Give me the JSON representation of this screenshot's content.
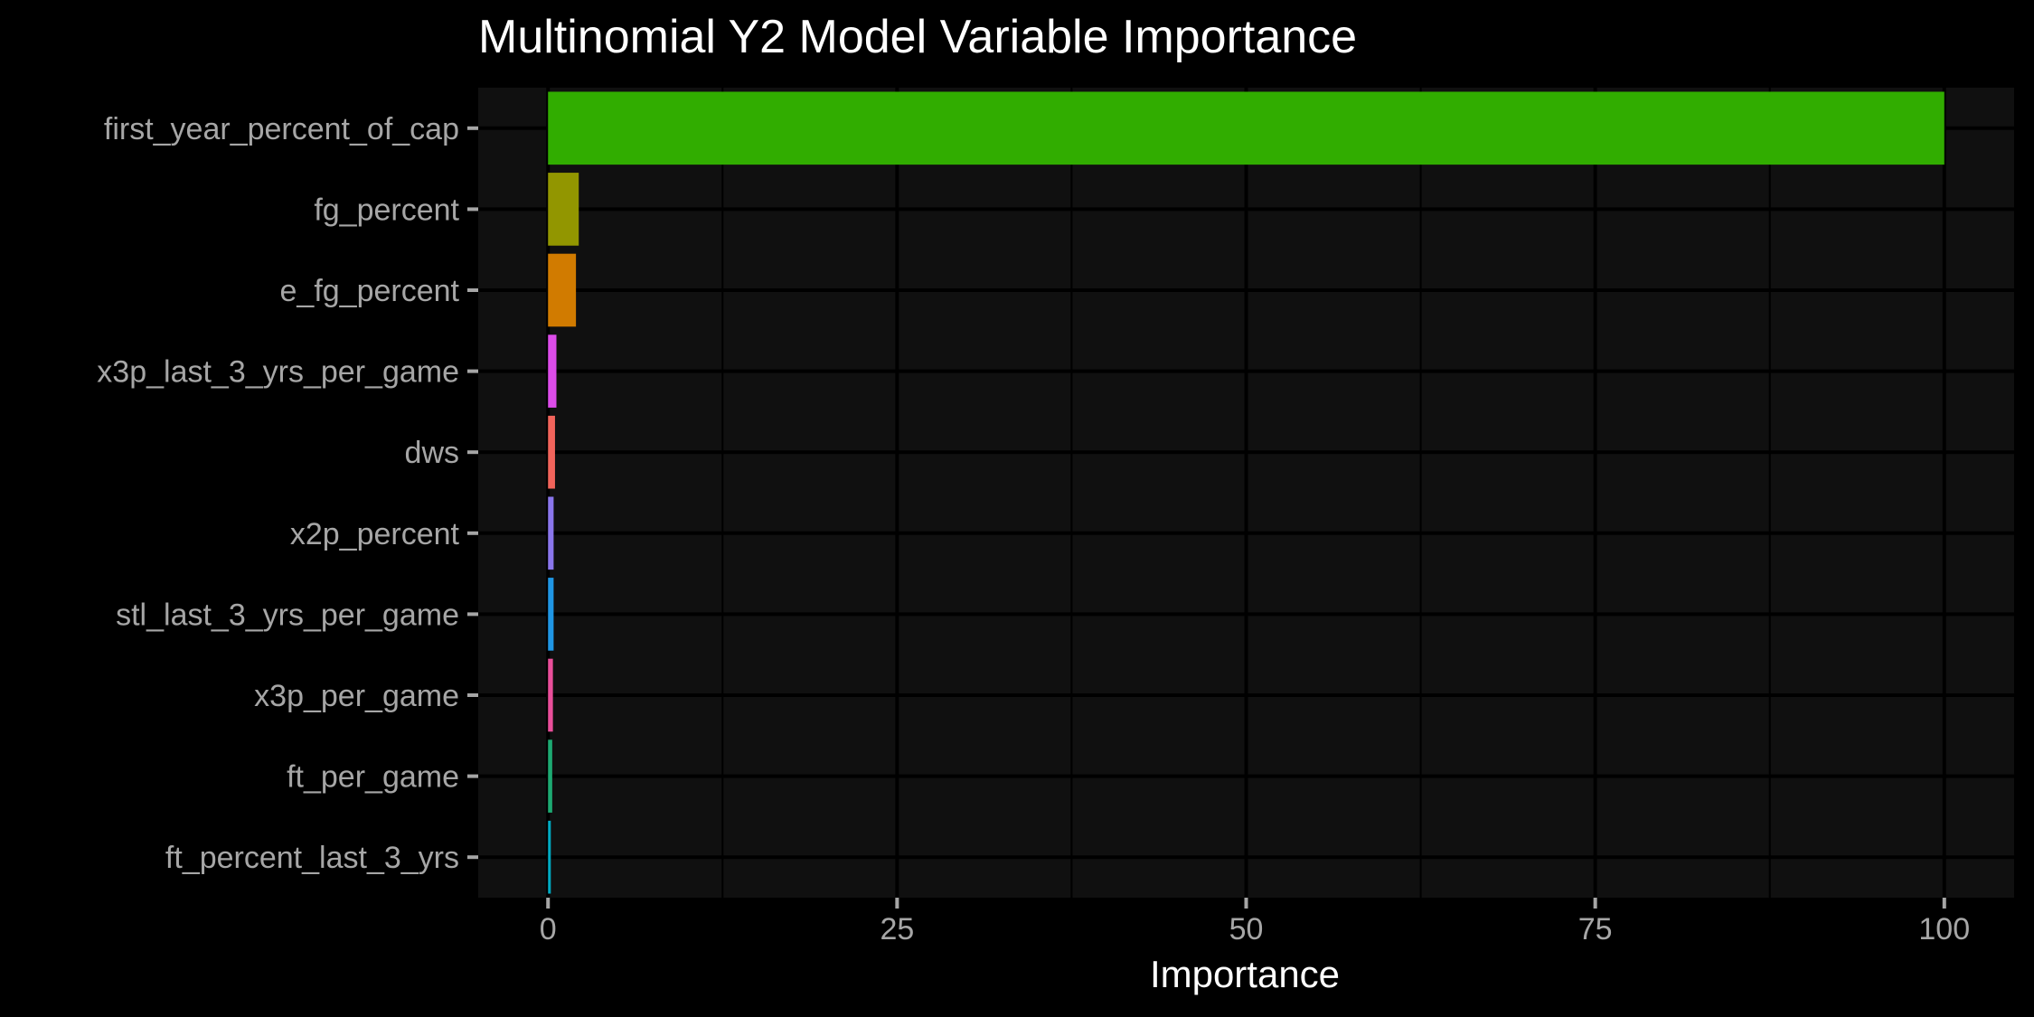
{
  "chart_data": {
    "type": "bar",
    "orientation": "horizontal",
    "title": "Multinomial Y2 Model Variable Importance",
    "xlabel": "Importance",
    "ylabel": "",
    "xlim": [
      -5,
      105
    ],
    "x_ticks": [
      0,
      25,
      50,
      75,
      100
    ],
    "grid": true,
    "legend": "none",
    "categories": [
      "first_year_percent_of_cap",
      "fg_percent",
      "e_fg_percent",
      "x3p_last_3_yrs_per_game",
      "dws",
      "x2p_percent",
      "stl_last_3_yrs_per_game",
      "x3p_per_game",
      "ft_per_game",
      "ft_percent_last_3_yrs"
    ],
    "values": [
      100,
      2.2,
      2.0,
      0.6,
      0.5,
      0.4,
      0.4,
      0.35,
      0.3,
      0.2
    ],
    "colors": [
      "#31ad00",
      "#929600",
      "#d17b00",
      "#dc4ce9",
      "#f2645b",
      "#8a76ec",
      "#1f96e4",
      "#ea4e9a",
      "#1daa72",
      "#00aac2"
    ]
  },
  "theme": {
    "background": "#000000",
    "panel": "#101010",
    "grid": "#000000"
  }
}
